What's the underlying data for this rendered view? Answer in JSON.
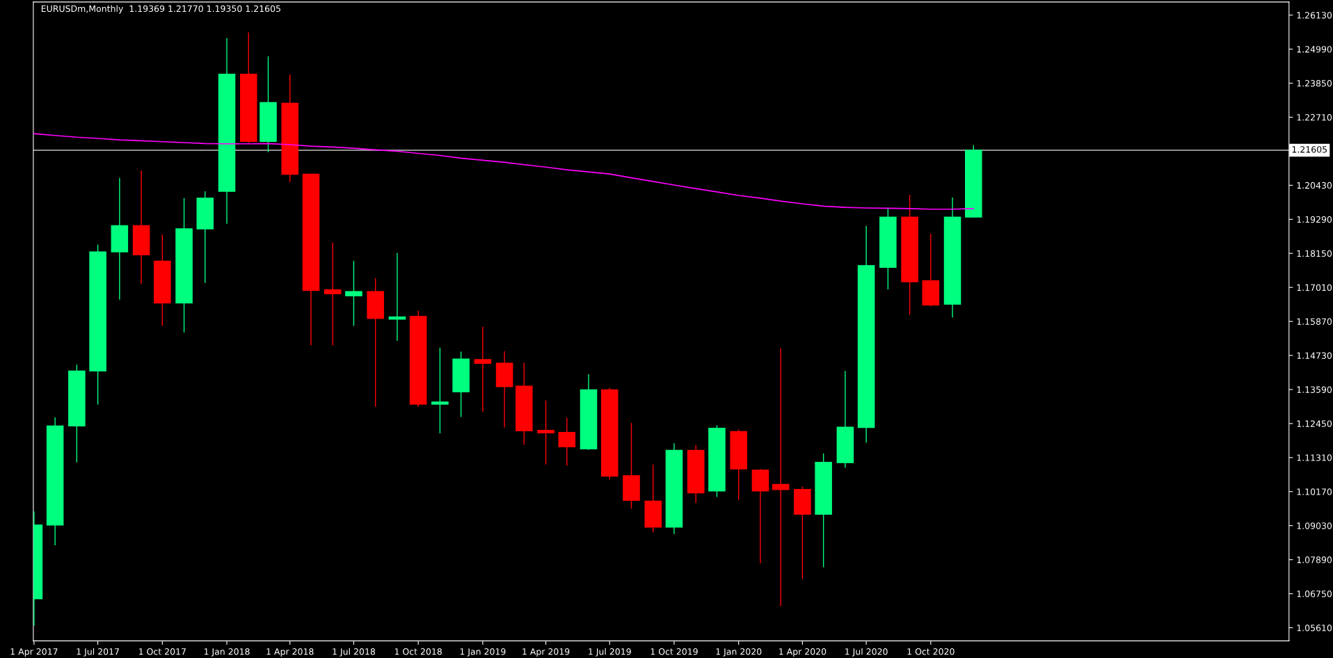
{
  "chart_data": {
    "type": "candlestick",
    "title": "EURUSDm,Monthly  1.19369 1.21770 1.19350 1.21605",
    "x": [
      "2017-04",
      "2017-05",
      "2017-06",
      "2017-07",
      "2017-08",
      "2017-09",
      "2017-10",
      "2017-11",
      "2017-12",
      "2018-01",
      "2018-02",
      "2018-03",
      "2018-04",
      "2018-05",
      "2018-06",
      "2018-07",
      "2018-08",
      "2018-09",
      "2018-10",
      "2018-11",
      "2018-12",
      "2019-01",
      "2019-02",
      "2019-03",
      "2019-04",
      "2019-05",
      "2019-06",
      "2019-07",
      "2019-08",
      "2019-09",
      "2019-10",
      "2019-11",
      "2019-12",
      "2020-01",
      "2020-02",
      "2020-03",
      "2020-04",
      "2020-05",
      "2020-06",
      "2020-07",
      "2020-08",
      "2020-09",
      "2020-10",
      "2020-11",
      "2020-12"
    ],
    "ohlc": [
      [
        1.0658,
        1.095,
        1.0568,
        1.0905
      ],
      [
        1.0905,
        1.1266,
        1.0837,
        1.1237
      ],
      [
        1.1237,
        1.1442,
        1.1115,
        1.1421
      ],
      [
        1.1421,
        1.1844,
        1.1309,
        1.182
      ],
      [
        1.182,
        1.2068,
        1.166,
        1.1908
      ],
      [
        1.1908,
        1.2092,
        1.1713,
        1.181
      ],
      [
        1.1789,
        1.1878,
        1.1572,
        1.1649
      ],
      [
        1.1649,
        1.2,
        1.155,
        1.1897
      ],
      [
        1.1897,
        1.2023,
        1.1716,
        1.2
      ],
      [
        1.2023,
        1.2536,
        1.1914,
        1.2415
      ],
      [
        1.2415,
        1.2555,
        1.2185,
        1.219
      ],
      [
        1.219,
        1.2475,
        1.2154,
        1.232
      ],
      [
        1.2318,
        1.2414,
        1.2054,
        1.208
      ],
      [
        1.208,
        1.2082,
        1.1507,
        1.1691
      ],
      [
        1.1693,
        1.1851,
        1.1507,
        1.168
      ],
      [
        1.1673,
        1.179,
        1.1572,
        1.1687
      ],
      [
        1.1687,
        1.1732,
        1.1301,
        1.1597
      ],
      [
        1.1595,
        1.1816,
        1.1522,
        1.1602
      ],
      [
        1.1604,
        1.1623,
        1.1301,
        1.131
      ],
      [
        1.131,
        1.1499,
        1.1212,
        1.1317
      ],
      [
        1.1351,
        1.1486,
        1.1267,
        1.1461
      ],
      [
        1.1459,
        1.1569,
        1.1285,
        1.1447
      ],
      [
        1.1447,
        1.1487,
        1.1232,
        1.1369
      ],
      [
        1.137,
        1.1448,
        1.1174,
        1.1221
      ],
      [
        1.1222,
        1.1322,
        1.1108,
        1.1214
      ],
      [
        1.1215,
        1.1264,
        1.1104,
        1.1167
      ],
      [
        1.116,
        1.141,
        1.1157,
        1.1358
      ],
      [
        1.1358,
        1.1364,
        1.1058,
        1.1069
      ],
      [
        1.107,
        1.1247,
        1.096,
        1.0988
      ],
      [
        1.0985,
        1.1108,
        1.088,
        1.0898
      ],
      [
        1.0898,
        1.1179,
        1.0875,
        1.1155
      ],
      [
        1.1155,
        1.1173,
        1.0979,
        1.1013
      ],
      [
        1.1019,
        1.1239,
        1.0999,
        1.1229
      ],
      [
        1.1218,
        1.1225,
        1.0989,
        1.1093
      ],
      [
        1.1089,
        1.1093,
        1.0777,
        1.1019
      ],
      [
        1.1041,
        1.1497,
        1.0633,
        1.1024
      ],
      [
        1.1024,
        1.1034,
        1.0725,
        1.0941
      ],
      [
        1.0941,
        1.1145,
        1.0764,
        1.1115
      ],
      [
        1.1114,
        1.1421,
        1.1097,
        1.1233
      ],
      [
        1.1232,
        1.1907,
        1.1181,
        1.1774
      ],
      [
        1.1768,
        1.1965,
        1.1694,
        1.1936
      ],
      [
        1.1936,
        1.2011,
        1.1609,
        1.172
      ],
      [
        1.1723,
        1.188,
        1.1638,
        1.1642
      ],
      [
        1.1645,
        1.2002,
        1.16,
        1.1936
      ],
      [
        1.19369,
        1.2177,
        1.1935,
        1.21605
      ]
    ],
    "colors": [
      "#00ff7f",
      "#00ff7f",
      "#00ff7f",
      "#00ff7f",
      "#00ff7f",
      "#ff0000",
      "#ff0000",
      "#00ff7f",
      "#00ff7f",
      "#00ff7f",
      "#ff0000",
      "#00ff7f",
      "#ff0000",
      "#ff0000",
      "#ff0000",
      "#00ff7f",
      "#ff0000",
      "#00ff7f",
      "#ff0000",
      "#00ff7f",
      "#00ff7f",
      "#ff0000",
      "#ff0000",
      "#ff0000",
      "#ff0000",
      "#ff0000",
      "#00ff7f",
      "#ff0000",
      "#ff0000",
      "#ff0000",
      "#00ff7f",
      "#ff0000",
      "#00ff7f",
      "#ff0000",
      "#ff0000",
      "#ff0000",
      "#ff0000",
      "#00ff7f",
      "#00ff7f",
      "#00ff7f",
      "#00ff7f",
      "#ff0000",
      "#ff0000",
      "#00ff7f",
      "#00ff7f"
    ],
    "series": [
      {
        "type": "line",
        "color": "#ff00ff",
        "values": [
          1.2216,
          1.221,
          1.2204,
          1.22,
          1.2195,
          1.2192,
          1.2189,
          1.2186,
          1.2183,
          1.2182,
          1.2182,
          1.2183,
          1.2179,
          1.2174,
          1.2171,
          1.2167,
          1.2162,
          1.2157,
          1.215,
          1.2143,
          1.2134,
          1.2127,
          1.212,
          1.2112,
          1.2104,
          1.2095,
          1.2088,
          1.2081,
          1.2068,
          1.2056,
          1.2044,
          1.2032,
          1.2021,
          1.2009,
          1.2,
          1.199,
          1.1981,
          1.1973,
          1.1969,
          1.1967,
          1.1966,
          1.1965,
          1.1963,
          1.1963,
          1.1965
        ]
      }
    ],
    "ref_lines": [
      {
        "axis": "y",
        "value": 1.21605,
        "label": "1.21605",
        "color": "#c0c0c0"
      }
    ],
    "xlim": [
      "2017-03-31",
      "2022-02-24"
    ],
    "xticks": [
      {
        "value": "2017-04",
        "label": "1 Apr 2017"
      },
      {
        "value": "2017-07",
        "label": "1 Jul 2017"
      },
      {
        "value": "2017-10",
        "label": "1 Oct 2017"
      },
      {
        "value": "2018-01",
        "label": "1 Jan 2018"
      },
      {
        "value": "2018-04",
        "label": "1 Apr 2018"
      },
      {
        "value": "2018-07",
        "label": "1 Jul 2018"
      },
      {
        "value": "2018-10",
        "label": "1 Oct 2018"
      },
      {
        "value": "2019-01",
        "label": "1 Jan 2019"
      },
      {
        "value": "2019-04",
        "label": "1 Apr 2019"
      },
      {
        "value": "2019-07",
        "label": "1 Jul 2019"
      },
      {
        "value": "2019-10",
        "label": "1 Oct 2019"
      },
      {
        "value": "2020-01",
        "label": "1 Jan 2020"
      },
      {
        "value": "2020-04",
        "label": "1 Apr 2020"
      },
      {
        "value": "2020-07",
        "label": "1 Jul 2020"
      },
      {
        "value": "2020-10",
        "label": "1 Oct 2020"
      }
    ],
    "ylim": [
      1.0517,
      1.2657
    ],
    "yticks": [
      {
        "value": 1.0561,
        "label": "1.05610"
      },
      {
        "value": 1.0675,
        "label": "1.06750"
      },
      {
        "value": 1.0789,
        "label": "1.07890"
      },
      {
        "value": 1.0903,
        "label": "1.09030"
      },
      {
        "value": 1.1017,
        "label": "1.10170"
      },
      {
        "value": 1.1131,
        "label": "1.11310"
      },
      {
        "value": 1.1245,
        "label": "1.12450"
      },
      {
        "value": 1.1359,
        "label": "1.13590"
      },
      {
        "value": 1.1473,
        "label": "1.14730"
      },
      {
        "value": 1.1587,
        "label": "1.15870"
      },
      {
        "value": 1.1701,
        "label": "1.17010"
      },
      {
        "value": 1.1815,
        "label": "1.18150"
      },
      {
        "value": 1.1929,
        "label": "1.19290"
      },
      {
        "value": 1.2043,
        "label": "1.20430"
      },
      {
        "value": 1.2271,
        "label": "1.22710"
      },
      {
        "value": 1.2385,
        "label": "1.23850"
      },
      {
        "value": 1.2499,
        "label": "1.24990"
      },
      {
        "value": 1.2613,
        "label": "1.26130"
      }
    ],
    "grid": false,
    "legend": false
  }
}
